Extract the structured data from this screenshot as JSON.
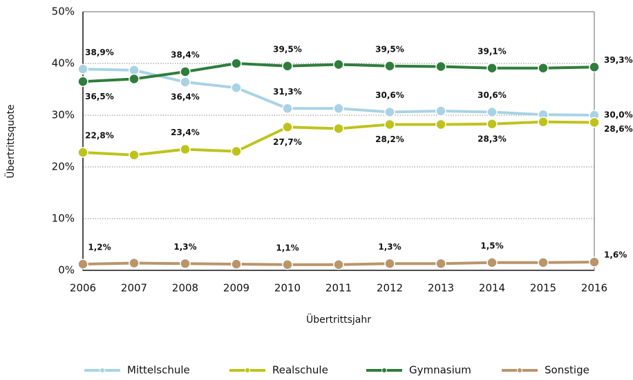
{
  "chart_data": {
    "type": "line",
    "xlabel": "Übertrittsjahr",
    "ylabel": "Übertrittsquote",
    "categories": [
      "2006",
      "2007",
      "2008",
      "2009",
      "2010",
      "2011",
      "2012",
      "2013",
      "2014",
      "2015",
      "2016"
    ],
    "ylim": [
      0,
      50
    ],
    "yticks": [
      {
        "value": 0,
        "label": "0%"
      },
      {
        "value": 10,
        "label": "10%"
      },
      {
        "value": 20,
        "label": "20%"
      },
      {
        "value": 30,
        "label": "30%"
      },
      {
        "value": 40,
        "label": "40%"
      },
      {
        "value": 50,
        "label": "50%"
      }
    ],
    "grid": true,
    "legend": "bottom",
    "series": [
      {
        "name": "Mittelschule",
        "color": "#a9d3e5",
        "values": [
          38.9,
          38.7,
          36.4,
          35.3,
          31.3,
          31.3,
          30.6,
          30.8,
          30.6,
          30.1,
          30.0
        ],
        "value_labels": [
          "38,9%",
          null,
          "36,4%",
          null,
          "31,3%",
          null,
          "30,6%",
          null,
          "30,6%",
          null,
          "30,0%"
        ]
      },
      {
        "name": "Realschule",
        "color": "#bec31c",
        "values": [
          22.8,
          22.3,
          23.4,
          23.0,
          27.7,
          27.4,
          28.2,
          28.2,
          28.3,
          28.7,
          28.6
        ],
        "value_labels": [
          "22,8%",
          null,
          "23,4%",
          null,
          "27,7%",
          null,
          "28,2%",
          null,
          "28,3%",
          null,
          "28,6%"
        ]
      },
      {
        "name": "Gymnasium",
        "color": "#2f7d3b",
        "values": [
          36.5,
          37.0,
          38.4,
          40.0,
          39.5,
          39.8,
          39.5,
          39.4,
          39.1,
          39.1,
          39.3
        ],
        "value_labels": [
          "36,5%",
          null,
          "38,4%",
          null,
          "39,5%",
          null,
          "39,5%",
          null,
          "39,1%",
          null,
          "39,3%"
        ]
      },
      {
        "name": "Sonstige",
        "color": "#b9956a",
        "values": [
          1.2,
          1.4,
          1.3,
          1.2,
          1.1,
          1.1,
          1.3,
          1.3,
          1.5,
          1.5,
          1.6
        ],
        "value_labels": [
          "1,2%",
          null,
          "1,3%",
          null,
          "1,1%",
          null,
          "1,3%",
          null,
          "1,5%",
          null,
          "1,6%"
        ]
      }
    ]
  }
}
